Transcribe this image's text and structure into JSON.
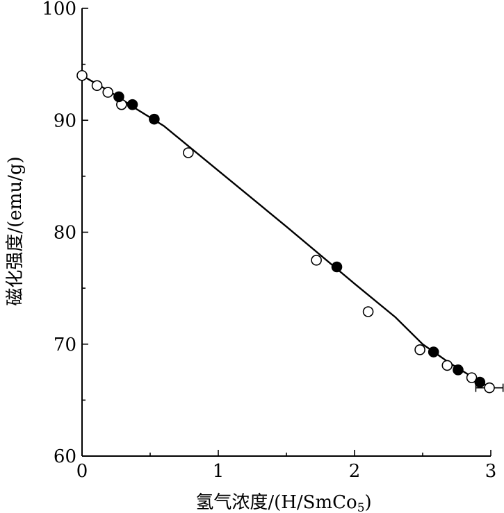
{
  "chart_data": {
    "type": "scatter",
    "xlabel_main": "氢气浓度/(H/SmCo",
    "xlabel_sub": "5",
    "xlabel_close": ")",
    "ylabel": "磁化强度/(emu/g)",
    "xlim": [
      0,
      3
    ],
    "ylim": [
      60,
      100
    ],
    "xticks": [
      0,
      1,
      2,
      3
    ],
    "yticks": [
      60,
      70,
      80,
      90,
      100
    ],
    "xtick_labels": [
      "0",
      "1",
      "2",
      "3"
    ],
    "ytick_labels": [
      "60",
      "70",
      "80",
      "90",
      "100"
    ],
    "series": [
      {
        "marker": "open-circle",
        "points": [
          [
            0.0,
            94.0
          ],
          [
            0.11,
            93.1
          ],
          [
            0.19,
            92.5
          ],
          [
            0.29,
            91.4
          ],
          [
            0.78,
            87.1
          ],
          [
            1.72,
            77.5
          ],
          [
            2.1,
            72.9
          ],
          [
            2.48,
            69.5
          ],
          [
            2.68,
            68.1
          ],
          [
            2.86,
            67.0
          ],
          [
            2.99,
            66.1
          ]
        ]
      },
      {
        "marker": "filled-circle",
        "points": [
          [
            0.27,
            92.1
          ],
          [
            0.37,
            91.4
          ],
          [
            0.53,
            90.1
          ],
          [
            1.87,
            76.9
          ],
          [
            2.58,
            69.3
          ],
          [
            2.76,
            67.7
          ],
          [
            2.92,
            66.6
          ]
        ]
      }
    ],
    "fit_curve": [
      [
        0.0,
        94.0
      ],
      [
        0.2,
        92.6
      ],
      [
        0.4,
        91.0
      ],
      [
        0.6,
        89.5
      ],
      [
        1.0,
        85.5
      ],
      [
        1.5,
        80.5
      ],
      [
        2.0,
        75.4
      ],
      [
        2.3,
        72.4
      ],
      [
        2.5,
        70.0
      ],
      [
        2.7,
        68.3
      ],
      [
        2.9,
        66.8
      ],
      [
        3.0,
        66.1
      ]
    ],
    "error_bar": {
      "x": 2.99,
      "y": 66.1,
      "xerr": 0.1
    },
    "grid": false
  }
}
